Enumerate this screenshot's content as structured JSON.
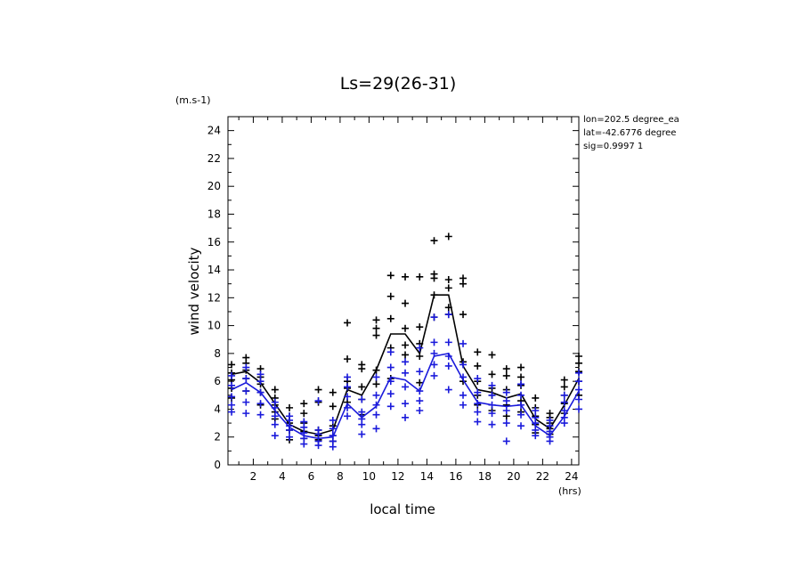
{
  "chart_data": {
    "type": "scatter",
    "title": "Ls=29(26-31)",
    "xlabel": "local time",
    "ylabel": "wind velocity",
    "xunit": "(hrs)",
    "yunit": "(m.s-1)",
    "xlim": [
      0.25,
      24.5
    ],
    "ylim": [
      0,
      25
    ],
    "xticks": [
      2,
      4,
      6,
      8,
      10,
      12,
      14,
      16,
      18,
      20,
      22,
      24
    ],
    "yticks": [
      0,
      2,
      4,
      6,
      8,
      10,
      12,
      14,
      16,
      18,
      20,
      22,
      24
    ],
    "x": [
      0.5,
      1.5,
      2.5,
      3.5,
      4.5,
      5.5,
      6.5,
      7.5,
      8.5,
      9.5,
      10.5,
      11.5,
      12.5,
      13.5,
      14.5,
      15.5,
      16.5,
      17.5,
      18.5,
      19.5,
      20.5,
      21.5,
      22.5,
      23.5,
      24.5
    ],
    "info": [
      "lon=202.5 degree_ea",
      "lat=-42.6776 degree",
      "sig=0.9997 1"
    ],
    "series": [
      {
        "color": "#000000",
        "mean": [
          6.5,
          6.7,
          5.9,
          4.4,
          2.9,
          2.4,
          2.2,
          2.5,
          5.4,
          5.0,
          6.8,
          9.4,
          9.4,
          8.0,
          12.2,
          12.2,
          7.1,
          5.4,
          5.2,
          4.8,
          5.1,
          3.3,
          2.6,
          4.3,
          6.2
        ],
        "points": [
          [
            4.8,
            5.5,
            6.1,
            6.6,
            7.2
          ],
          [
            5.3,
            6.2,
            6.8,
            7.3,
            7.7
          ],
          [
            4.3,
            5.2,
            5.8,
            6.3,
            6.9
          ],
          [
            3.3,
            3.8,
            4.3,
            4.8,
            5.4
          ],
          [
            1.8,
            2.5,
            3.0,
            3.5,
            4.1
          ],
          [
            1.9,
            2.4,
            3.0,
            3.7,
            4.4
          ],
          [
            1.8,
            2.1,
            2.5,
            4.5,
            5.4
          ],
          [
            1.7,
            2.1,
            2.8,
            4.2,
            5.2
          ],
          [
            4.5,
            5.5,
            6.0,
            7.6,
            10.2
          ],
          [
            3.6,
            4.7,
            5.6,
            6.9,
            7.2
          ],
          [
            5.8,
            6.8,
            9.3,
            9.8,
            10.4
          ],
          [
            6.2,
            8.4,
            10.5,
            12.1,
            13.6
          ],
          [
            7.9,
            8.6,
            9.8,
            11.6,
            13.5
          ],
          [
            5.9,
            7.8,
            8.7,
            9.9,
            13.5
          ],
          [
            10.6,
            12.2,
            13.4,
            13.7,
            16.1
          ],
          [
            10.8,
            11.3,
            12.7,
            13.3,
            16.4
          ],
          [
            6.0,
            7.4,
            10.8,
            13.0,
            13.4
          ],
          [
            4.3,
            5.0,
            6.0,
            7.1,
            8.1
          ],
          [
            3.9,
            5.0,
            5.5,
            6.5,
            7.9
          ],
          [
            3.5,
            4.3,
            5.4,
            6.4,
            6.9
          ],
          [
            3.8,
            4.6,
            5.7,
            6.3,
            7.0
          ],
          [
            2.3,
            2.9,
            3.5,
            4.1,
            4.8
          ],
          [
            2.2,
            2.6,
            3.0,
            3.4,
            3.7
          ],
          [
            3.7,
            4.4,
            5.0,
            5.6,
            6.1
          ],
          [
            5.0,
            6.0,
            6.7,
            7.3,
            7.8
          ]
        ]
      },
      {
        "color": "#1a1adb",
        "mean": [
          5.4,
          5.9,
          5.2,
          3.9,
          2.7,
          2.1,
          1.9,
          2.0,
          4.4,
          3.4,
          4.2,
          6.3,
          6.1,
          5.3,
          7.8,
          8.0,
          6.1,
          4.5,
          4.3,
          4.2,
          4.3,
          2.8,
          2.1,
          3.5,
          5.3
        ],
        "points": [
          [
            3.8,
            4.3,
            4.9,
            5.7,
            6.4
          ],
          [
            3.7,
            4.5,
            5.3,
            6.2,
            7.0
          ],
          [
            3.6,
            4.4,
            5.2,
            6.0,
            6.5
          ],
          [
            2.1,
            2.9,
            3.5,
            4.1,
            4.5
          ],
          [
            2.0,
            2.5,
            2.8,
            3.2,
            3.5
          ],
          [
            1.5,
            1.9,
            2.3,
            2.7,
            3.1
          ],
          [
            1.4,
            1.7,
            2.2,
            2.5,
            4.6
          ],
          [
            1.3,
            1.7,
            2.1,
            2.6,
            3.2
          ],
          [
            3.5,
            4.1,
            4.9,
            5.6,
            6.3
          ],
          [
            2.2,
            2.9,
            3.3,
            3.8,
            4.7
          ],
          [
            2.6,
            3.6,
            4.3,
            5.0,
            6.3
          ],
          [
            4.2,
            5.1,
            6.0,
            7.0,
            8.1
          ],
          [
            3.4,
            4.4,
            5.6,
            6.6,
            7.4
          ],
          [
            3.9,
            4.6,
            5.3,
            6.7,
            8.4
          ],
          [
            6.4,
            7.2,
            8.0,
            8.8,
            10.6
          ],
          [
            5.4,
            7.1,
            7.8,
            8.8,
            10.8
          ],
          [
            4.3,
            5.0,
            6.3,
            7.2,
            8.7
          ],
          [
            3.1,
            3.8,
            4.4,
            5.2,
            6.2
          ],
          [
            2.9,
            3.7,
            4.3,
            5.0,
            5.7
          ],
          [
            1.7,
            3.0,
            3.9,
            4.6,
            5.2
          ],
          [
            2.8,
            3.6,
            4.3,
            5.0,
            5.8
          ],
          [
            2.1,
            2.5,
            3.0,
            3.4,
            3.9
          ],
          [
            1.7,
            2.0,
            2.4,
            2.8,
            3.2
          ],
          [
            3.0,
            3.4,
            3.9,
            4.5,
            5.0
          ],
          [
            4.0,
            4.7,
            5.4,
            6.0,
            6.6
          ]
        ]
      }
    ]
  }
}
